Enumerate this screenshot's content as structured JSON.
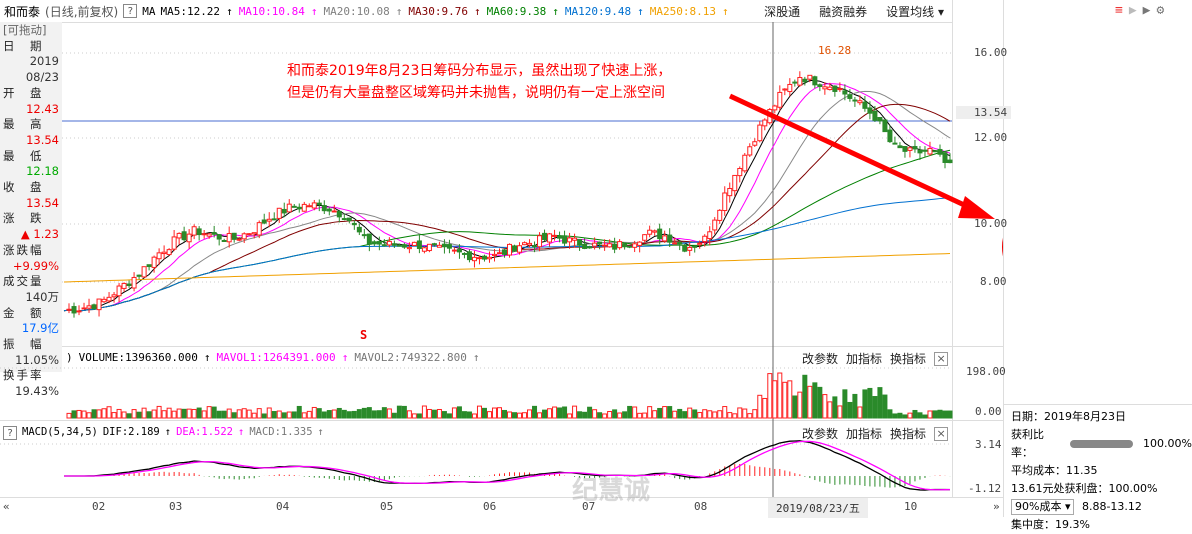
{
  "header": {
    "stock_name": "和而泰",
    "mode": "(日线,前复权)",
    "help": "?",
    "ma_label": "MA",
    "ma": [
      {
        "label": "MA5:12.22",
        "color": "#000000"
      },
      {
        "label": "MA10:10.84",
        "color": "#ff00ff"
      },
      {
        "label": "MA20:10.08",
        "color": "#808080"
      },
      {
        "label": "MA30:9.76",
        "color": "#800000"
      },
      {
        "label": "MA60:9.38",
        "color": "#008000"
      },
      {
        "label": "MA120:9.48",
        "color": "#0070d0"
      },
      {
        "label": "MA250:8.13",
        "color": "#f0a000"
      }
    ],
    "arrow": "↑",
    "buttons": [
      "深股通",
      "融资融券",
      "设置均线 ▾"
    ]
  },
  "left_panel": {
    "drag": "[可拖动]",
    "rows": [
      {
        "label": "日　期",
        "value": "2019\n08/23",
        "cls": "dk"
      },
      {
        "label": "开　盘",
        "value": "12.43",
        "cls": "red"
      },
      {
        "label": "最　高",
        "value": "13.54",
        "cls": "red"
      },
      {
        "label": "最　低",
        "value": "12.18",
        "cls": "green"
      },
      {
        "label": "收　盘",
        "value": "13.54",
        "cls": "red"
      },
      {
        "label": "涨　跌",
        "value": "▲ 1.23",
        "cls": "red"
      },
      {
        "label": "涨跌幅",
        "value": "+9.99%",
        "cls": "red"
      },
      {
        "label": "成交量",
        "value": "140万",
        "cls": "dk"
      },
      {
        "label": "金　额",
        "value": "17.9亿",
        "cls": "blue"
      },
      {
        "label": "振　幅",
        "value": "11.05%",
        "cls": "dk"
      },
      {
        "label": "换手率",
        "value": "19.43%",
        "cls": "dk"
      }
    ]
  },
  "annotation": {
    "line1": "和而泰2019年8月23日筹码分布显示，虽然出现了快速上涨，",
    "line2": "但是仍有大量盘整区域筹码并未抛售，说明仍有一定上涨空间",
    "high_label": "16.28",
    "s_marker": "S"
  },
  "price_axis": {
    "labels": [
      "16.00",
      "12.00",
      "10.00",
      "8.00"
    ],
    "current": "13.54"
  },
  "volume_pane": {
    "prefix": ")",
    "volume": "VOLUME:1396360.000",
    "mavol1": "MAVOL1:1264391.000",
    "mavol2": "MAVOL2:749322.800",
    "axis": [
      "198.00",
      "0.00"
    ]
  },
  "macd_pane": {
    "help": "?",
    "title": "MACD(5,34,5)",
    "dif": "DIF:2.189",
    "dea": "DEA:1.522",
    "macd": "MACD:1.335",
    "axis": [
      "3.14",
      "-1.12"
    ]
  },
  "pane_buttons": [
    "改参数",
    "加指标",
    "换指标"
  ],
  "close": "×",
  "x_axis": {
    "labels": [
      "02",
      "03",
      "04",
      "05",
      "06",
      "07",
      "08",
      "10"
    ],
    "cursor": "2019/08/23/五",
    "nav_left": "«",
    "nav_right": "»"
  },
  "chip": {
    "date": "日期：2019年8月23日",
    "profit_label": "获利比率：",
    "profit": "100.00%",
    "avg": "平均成本：11.35",
    "at": "13.61元处获利盘：100.00%",
    "cost_select": "90%成本 ▾",
    "range": "8.88-13.12",
    "concentration": "集中度：19.3%"
  },
  "watermark": "纪慧诚",
  "colors": {
    "up": "#ff2020",
    "down": "#2a8a2a",
    "chip": "#0070d0",
    "annot": "#ff0000"
  },
  "chart_data": {
    "type": "candlestick",
    "title": "和而泰 日线",
    "ylim": [
      6,
      17
    ],
    "x_ticks": [
      "02",
      "03",
      "04",
      "05",
      "06",
      "07",
      "08",
      "10"
    ],
    "close_anchors": [
      7.0,
      7.1,
      7.3,
      7.8,
      8.3,
      9.0,
      9.5,
      9.8,
      9.6,
      9.5,
      9.8,
      10.3,
      10.6,
      10.7,
      10.6,
      10.3,
      9.4,
      9.3,
      9.3,
      9.3,
      9.1,
      9.0,
      8.9,
      8.9,
      9.3,
      9.4,
      9.6,
      9.4,
      9.3,
      9.2,
      9.4,
      9.7,
      9.6,
      9.2,
      9.5,
      11.0,
      12.3,
      13.5,
      14.5,
      15.2,
      15.0,
      14.8,
      14.3,
      13.8,
      12.7,
      12.5,
      12.6,
      12.0
    ]
  }
}
